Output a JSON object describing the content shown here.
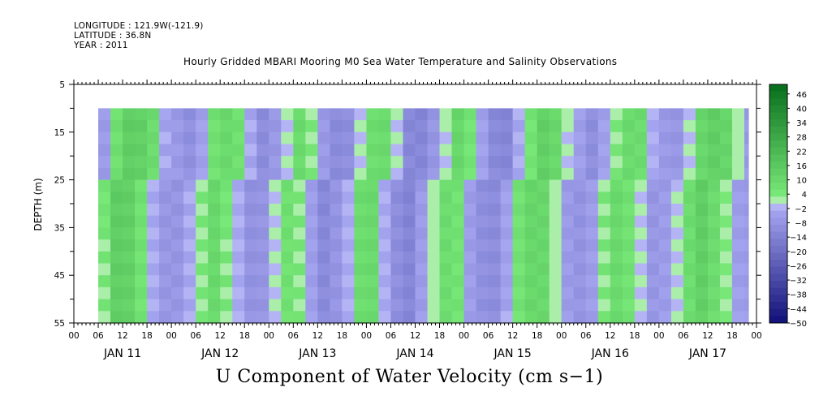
{
  "header": {
    "longitude": "LONGITUDE : 121.9W(-121.9)",
    "latitude": "LATITUDE : 36.8N",
    "year": "YEAR : 2011"
  },
  "chart_data": {
    "type": "heatmap",
    "title": "Hourly Gridded MBARI Mooring M0 Sea Water Temperature and Salinity Observations",
    "variable_label": "U Component of Water Velocity (cm s−1)",
    "ylabel": "DEPTH (m)",
    "y_inverted": true,
    "ylim": [
      5,
      55
    ],
    "y_ticks": [
      "5",
      "15",
      "25",
      "35",
      "45",
      "55"
    ],
    "data_depth_range": [
      10,
      55
    ],
    "x_hour_ticks": [
      "00",
      "06",
      "12",
      "18",
      "00",
      "06",
      "12",
      "18",
      "00",
      "06",
      "12",
      "18",
      "00",
      "06",
      "12",
      "18",
      "00",
      "06",
      "12",
      "18",
      "00",
      "06",
      "12",
      "18",
      "00",
      "06",
      "12",
      "18",
      "00"
    ],
    "x_day_labels": [
      "JAN 11",
      "JAN 12",
      "JAN 13",
      "JAN 14",
      "JAN 15",
      "JAN 16",
      "JAN 17"
    ],
    "data_time_range_hours": [
      6,
      166
    ],
    "colorbar": {
      "labels": [
        "46",
        "40",
        "34",
        "28",
        "22",
        "16",
        "10",
        "4",
        "−2",
        "−8",
        "−14",
        "−20",
        "−26",
        "−32",
        "−38",
        "−44",
        "−50"
      ],
      "range": [
        -50,
        50
      ]
    },
    "approx_profile": {
      "note_hours": [
        6,
        9,
        12,
        15,
        18,
        21,
        24,
        27,
        30,
        33,
        36,
        39,
        42,
        45,
        48,
        51,
        54,
        57,
        60,
        63,
        66,
        69,
        72,
        75,
        78,
        81,
        84,
        87,
        90,
        93,
        96,
        99,
        102,
        105,
        108,
        111,
        114,
        117,
        120,
        123,
        126,
        129,
        132,
        135,
        138,
        141,
        144,
        147,
        150,
        153,
        156,
        159,
        162,
        165
      ],
      "values": [
        -6,
        6,
        14,
        14,
        8,
        -4,
        -8,
        -10,
        -4,
        6,
        10,
        6,
        -4,
        -10,
        -8,
        0,
        8,
        4,
        -6,
        -12,
        -10,
        -2,
        8,
        10,
        -2,
        -12,
        -14,
        -8,
        2,
        10,
        6,
        -6,
        -12,
        -12,
        -4,
        6,
        12,
        10,
        2,
        -6,
        -10,
        -6,
        4,
        10,
        8,
        -2,
        -8,
        -8,
        0,
        10,
        14,
        10,
        2,
        -6
      ]
    }
  }
}
